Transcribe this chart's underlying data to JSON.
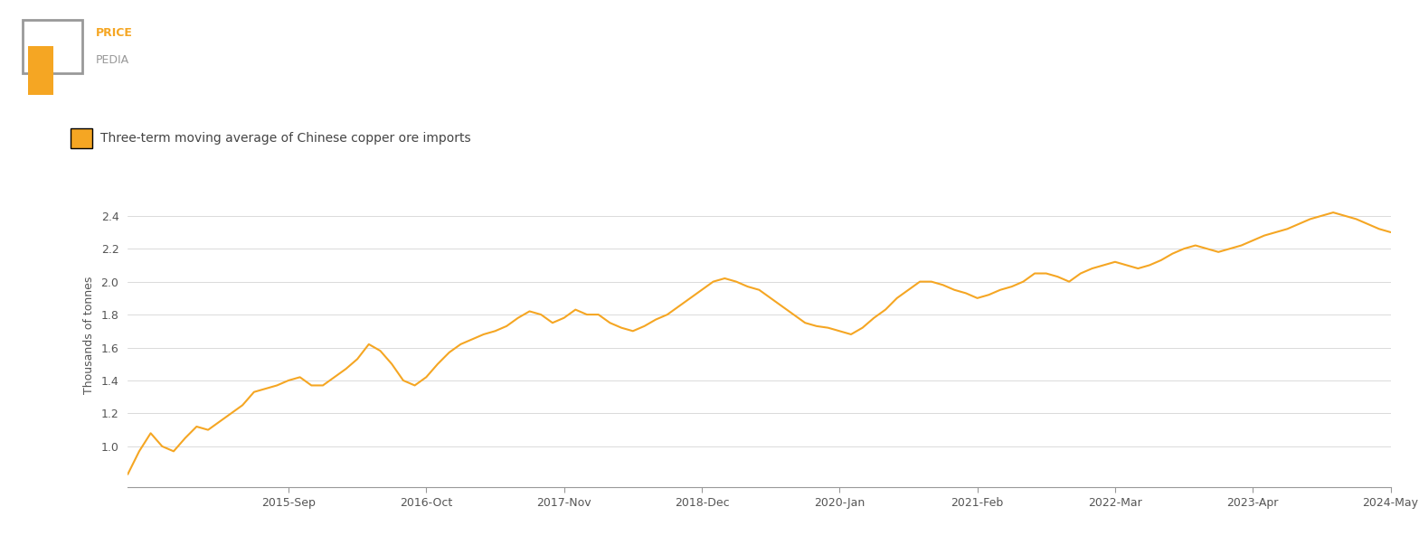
{
  "title": "Three-term moving average of Chinese copper ore imports",
  "ylabel": "Thousands of tonnes",
  "line_color": "#F5A623",
  "legend_color": "#F5A623",
  "background_color": "#FFFFFF",
  "ylim": [
    0.75,
    2.6
  ],
  "yticks": [
    1.0,
    1.2,
    1.4,
    1.6,
    1.8,
    2.0,
    2.2,
    2.4
  ],
  "x_tick_labels": [
    "2015-Sep",
    "2016-Oct",
    "2017-Nov",
    "2018-Dec",
    "2020-Jan",
    "2021-Feb",
    "2022-Mar",
    "2023-Apr",
    "2024-May"
  ],
  "x_tick_positions": [
    14,
    26,
    38,
    50,
    62,
    74,
    86,
    98,
    110
  ],
  "values": [
    0.83,
    0.97,
    1.08,
    1.0,
    0.97,
    1.05,
    1.12,
    1.1,
    1.15,
    1.2,
    1.25,
    1.33,
    1.35,
    1.37,
    1.4,
    1.42,
    1.37,
    1.37,
    1.42,
    1.47,
    1.53,
    1.62,
    1.58,
    1.5,
    1.4,
    1.37,
    1.42,
    1.5,
    1.57,
    1.62,
    1.65,
    1.68,
    1.7,
    1.73,
    1.78,
    1.82,
    1.8,
    1.75,
    1.78,
    1.83,
    1.8,
    1.8,
    1.75,
    1.72,
    1.7,
    1.73,
    1.77,
    1.8,
    1.85,
    1.9,
    1.95,
    2.0,
    2.02,
    2.0,
    1.97,
    1.95,
    1.9,
    1.85,
    1.8,
    1.75,
    1.73,
    1.72,
    1.7,
    1.68,
    1.72,
    1.78,
    1.83,
    1.9,
    1.95,
    2.0,
    2.0,
    1.98,
    1.95,
    1.93,
    1.9,
    1.92,
    1.95,
    1.97,
    2.0,
    2.05,
    2.05,
    2.03,
    2.0,
    2.05,
    2.08,
    2.1,
    2.12,
    2.1,
    2.08,
    2.1,
    2.13,
    2.17,
    2.2,
    2.22,
    2.2,
    2.18,
    2.2,
    2.22,
    2.25,
    2.28,
    2.3,
    2.32,
    2.35,
    2.38,
    2.4,
    2.42,
    2.4,
    2.38,
    2.35,
    2.32,
    2.3
  ]
}
